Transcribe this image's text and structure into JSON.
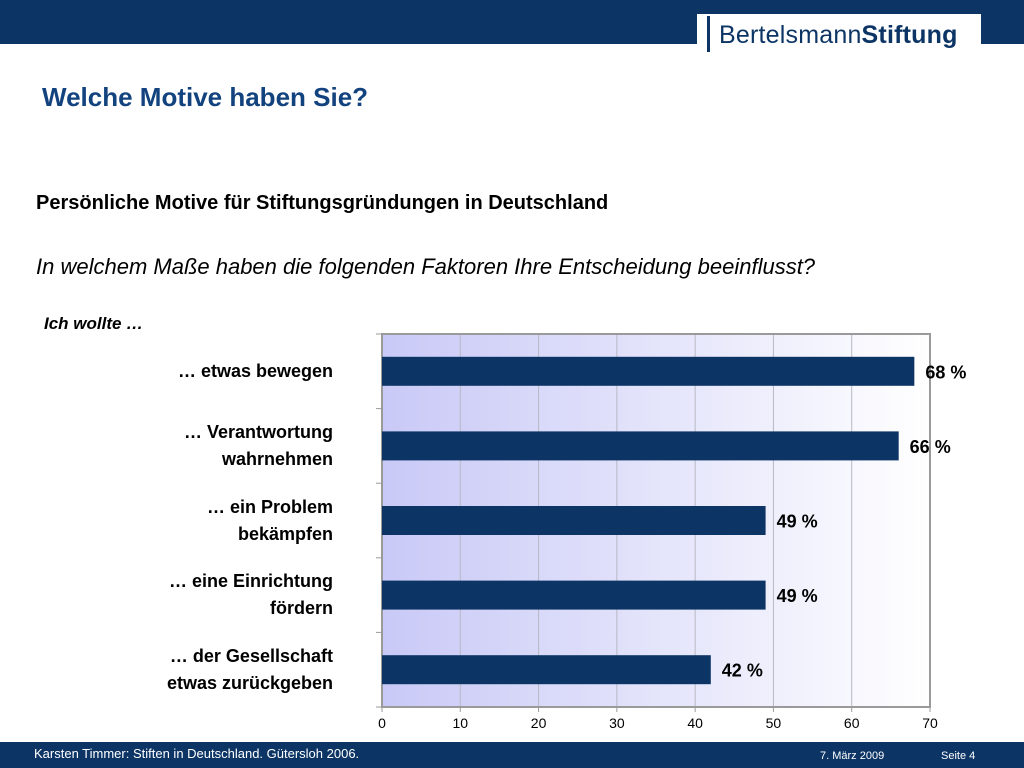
{
  "header": {
    "logo": {
      "part1": "Bertelsmann",
      "part2": "Stiftung"
    },
    "title": "Welche Motive haben Sie?"
  },
  "chart_text": {
    "lead": "Ich wollte …"
  },
  "chart_data": {
    "type": "bar",
    "orientation": "horizontal",
    "title": "Persönliche Motive für Stiftungsgründungen in Deutschland",
    "subtitle": "In welchem Maße haben die folgenden Faktoren Ihre Entscheidung beeinflusst?",
    "categories": [
      "… etwas bewegen",
      "… Verantwortung wahrnehmen",
      "… ein Problem bekämpfen",
      "… eine Einrichtung fördern",
      "… der Gesellschaft etwas zurückgeben"
    ],
    "category_lines": [
      [
        "… etwas bewegen"
      ],
      [
        "… Verantwortung",
        "wahrnehmen"
      ],
      [
        "… ein Problem",
        "bekämpfen"
      ],
      [
        "… eine Einrichtung",
        "fördern"
      ],
      [
        "… der Gesellschaft",
        "etwas zurückgeben"
      ]
    ],
    "values": [
      68,
      66,
      49,
      49,
      42
    ],
    "value_labels": [
      "68 %",
      "66 %",
      "49 %",
      "49 %",
      "42 %"
    ],
    "xlim": [
      0,
      70
    ],
    "xticks": [
      0,
      10,
      20,
      30,
      40,
      50,
      60,
      70
    ],
    "xlabel": "",
    "ylabel": "",
    "grid": true,
    "colors": {
      "bar": "#0c3565",
      "bg_left": "#c9c9f7",
      "bg_right": "#ffffff",
      "grid": "#b8b8c4",
      "frame": "#9a9a9a"
    }
  },
  "footer": {
    "source": "Karsten Timmer: Stiften in Deutschland. Gütersloh 2006.",
    "date": "7. März 2009",
    "page": "Seite 4"
  }
}
